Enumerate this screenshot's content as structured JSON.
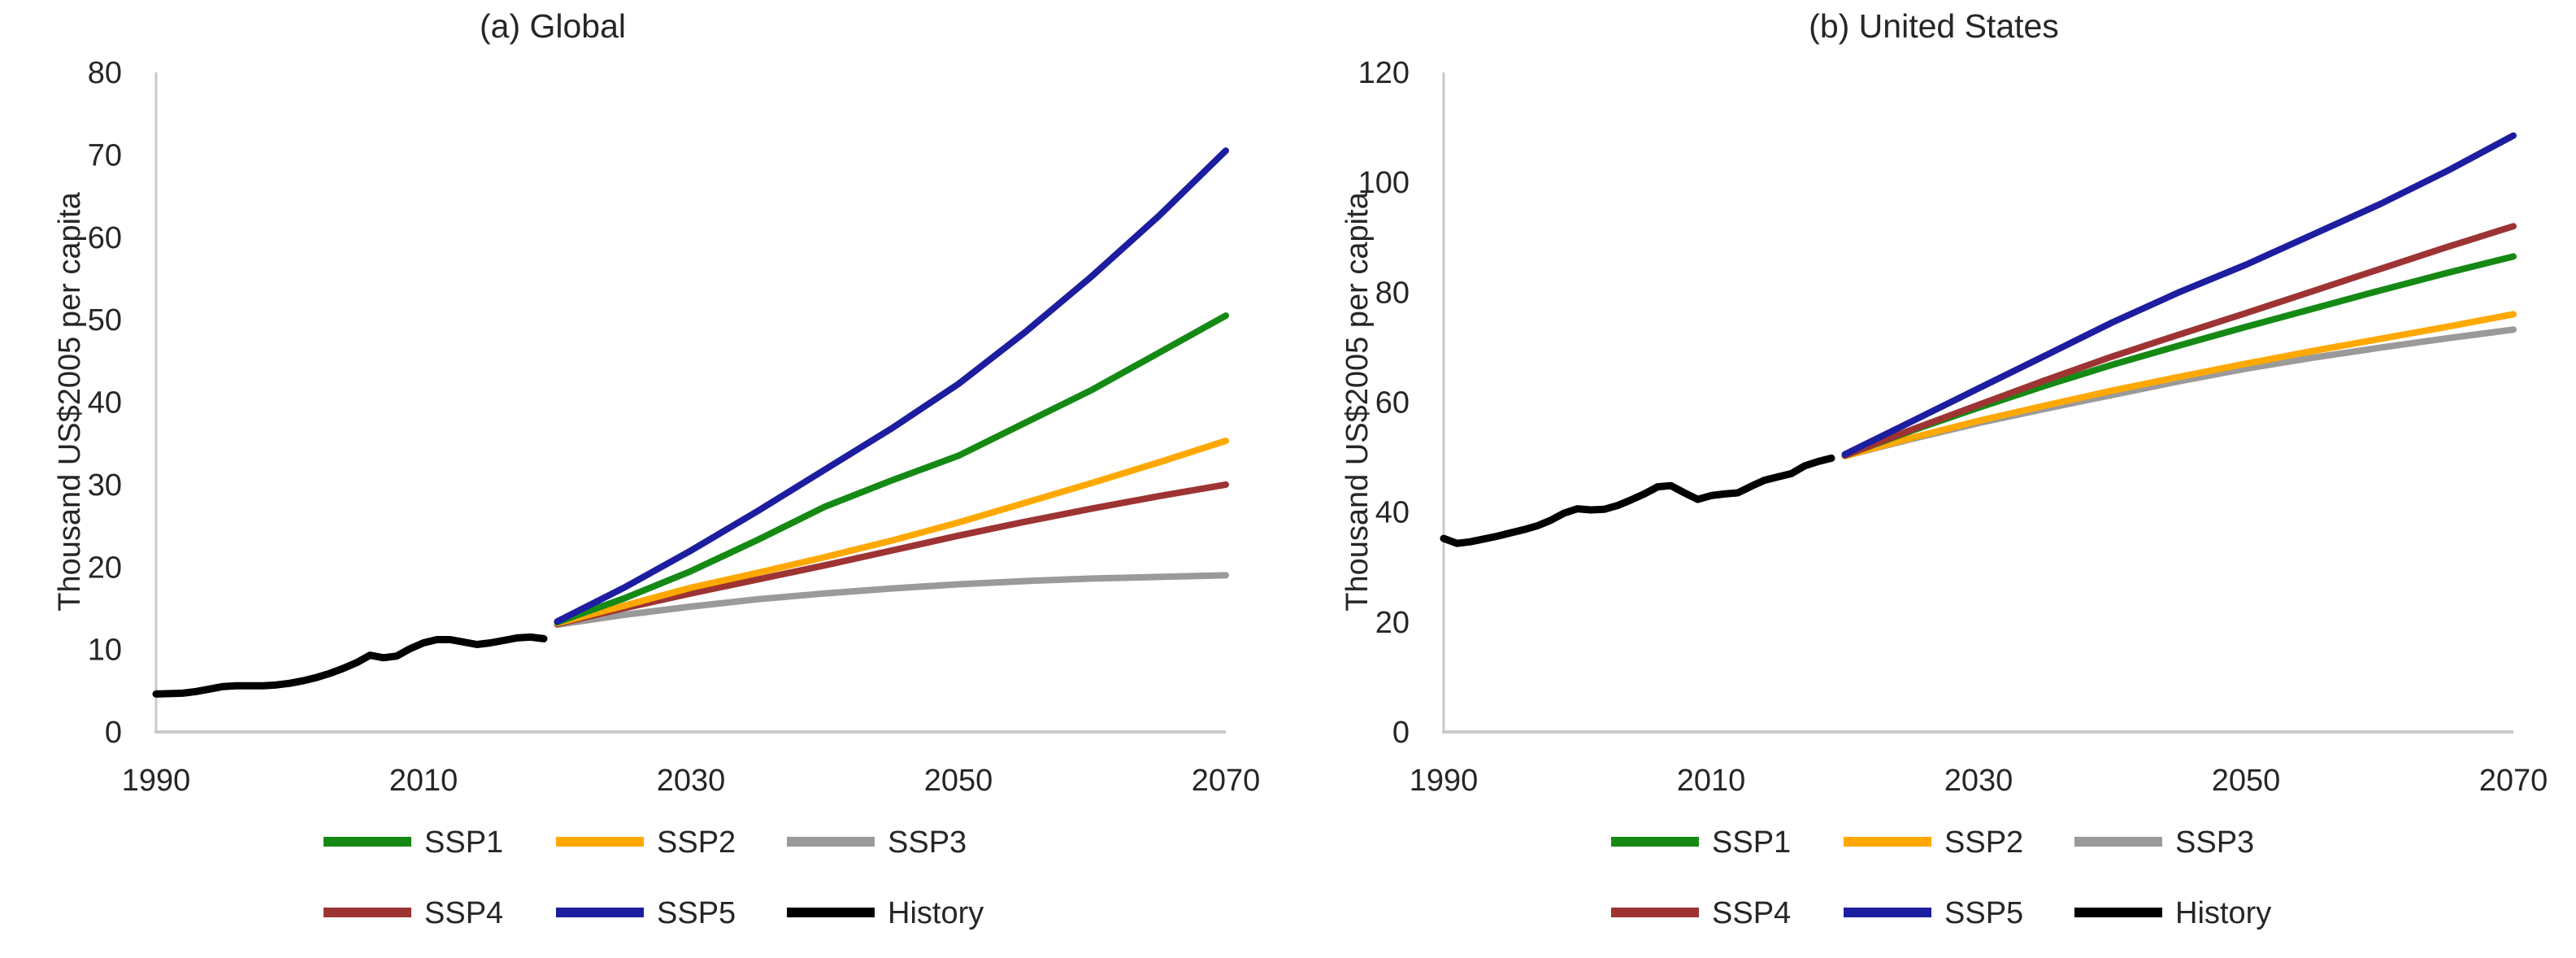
{
  "figure": {
    "background": "#ffffff",
    "text_color": "#262626",
    "axis_color": "#c9c9c9",
    "ylabel": "Thousand US$2005 per capita",
    "legend_rows": [
      [
        "SSP1",
        "SSP2",
        "SSP3"
      ],
      [
        "SSP4",
        "SSP5",
        "History"
      ]
    ],
    "colors": {
      "SSP1": "#148a14",
      "SSP2": "#ffa800",
      "SSP3": "#9a9a9a",
      "SSP4": "#9e3334",
      "SSP5": "#1d1da0",
      "History": "#000000"
    }
  },
  "chart_data": [
    {
      "type": "line",
      "title": "(a) Global",
      "xlabel": "",
      "ylabel": "Thousand US$2005 per capita",
      "xlim": [
        1990,
        2070
      ],
      "ylim": [
        0,
        80
      ],
      "xticks": [
        1990,
        2010,
        2030,
        2050,
        2070
      ],
      "yticks": [
        0,
        10,
        20,
        30,
        40,
        50,
        60,
        70,
        80
      ],
      "grid": false,
      "legend_position": "bottom",
      "draw_order": [
        "SSP3",
        "SSP4",
        "SSP2",
        "SSP1",
        "SSP5",
        "History"
      ],
      "series": [
        {
          "name": "History",
          "color": "#000000",
          "x": [
            1990,
            1991,
            1992,
            1993,
            1994,
            1995,
            1996,
            1997,
            1998,
            1999,
            2000,
            2001,
            2002,
            2003,
            2004,
            2005,
            2006,
            2007,
            2008,
            2009,
            2010,
            2011,
            2012,
            2013,
            2014,
            2015,
            2016,
            2017,
            2018,
            2019
          ],
          "y": [
            4.6,
            4.65,
            4.7,
            4.9,
            5.2,
            5.5,
            5.6,
            5.6,
            5.6,
            5.7,
            5.9,
            6.2,
            6.6,
            7.1,
            7.7,
            8.4,
            9.3,
            9.0,
            9.2,
            10.1,
            10.8,
            11.2,
            11.2,
            10.9,
            10.6,
            10.8,
            11.1,
            11.4,
            11.5,
            11.3
          ]
        },
        {
          "name": "SSP1",
          "color": "#148a14",
          "x": [
            2020,
            2025,
            2030,
            2035,
            2040,
            2045,
            2050,
            2055,
            2060,
            2065,
            2070
          ],
          "y": [
            13.3,
            16.2,
            19.5,
            23.3,
            27.3,
            30.5,
            33.5,
            37.5,
            41.5,
            46.0,
            50.5
          ]
        },
        {
          "name": "SSP2",
          "color": "#ffa800",
          "x": [
            2020,
            2025,
            2030,
            2035,
            2040,
            2045,
            2050,
            2055,
            2060,
            2065,
            2070
          ],
          "y": [
            13.2,
            15.3,
            17.5,
            19.3,
            21.2,
            23.2,
            25.4,
            27.8,
            30.2,
            32.7,
            35.3
          ]
        },
        {
          "name": "SSP3",
          "color": "#9a9a9a",
          "x": [
            2020,
            2025,
            2030,
            2035,
            2040,
            2045,
            2050,
            2055,
            2060,
            2065,
            2070
          ],
          "y": [
            13.0,
            14.2,
            15.2,
            16.1,
            16.8,
            17.4,
            17.9,
            18.3,
            18.6,
            18.8,
            19.0
          ]
        },
        {
          "name": "SSP4",
          "color": "#9e3334",
          "x": [
            2020,
            2025,
            2030,
            2035,
            2040,
            2045,
            2050,
            2055,
            2060,
            2065,
            2070
          ],
          "y": [
            13.1,
            15.0,
            16.8,
            18.5,
            20.2,
            22.0,
            23.8,
            25.5,
            27.1,
            28.6,
            30.0
          ]
        },
        {
          "name": "SSP5",
          "color": "#1d1da0",
          "x": [
            2020,
            2025,
            2030,
            2035,
            2040,
            2045,
            2050,
            2055,
            2060,
            2065,
            2070
          ],
          "y": [
            13.4,
            17.5,
            22.0,
            26.8,
            31.8,
            36.8,
            42.2,
            48.5,
            55.3,
            62.6,
            70.5
          ]
        }
      ]
    },
    {
      "type": "line",
      "title": "(b) United States",
      "xlabel": "",
      "ylabel": "Thousand US$2005 per capita",
      "xlim": [
        1990,
        2070
      ],
      "ylim": [
        0,
        120
      ],
      "xticks": [
        1990,
        2010,
        2030,
        2050,
        2070
      ],
      "yticks": [
        0,
        20,
        40,
        60,
        80,
        100,
        120
      ],
      "grid": false,
      "legend_position": "bottom",
      "draw_order": [
        "SSP3",
        "SSP2",
        "SSP1",
        "SSP4",
        "SSP5",
        "History"
      ],
      "series": [
        {
          "name": "History",
          "color": "#000000",
          "x": [
            1990,
            1991,
            1992,
            1993,
            1994,
            1995,
            1996,
            1997,
            1998,
            1999,
            2000,
            2001,
            2002,
            2003,
            2004,
            2005,
            2006,
            2007,
            2008,
            2009,
            2010,
            2011,
            2012,
            2013,
            2014,
            2015,
            2016,
            2017,
            2018,
            2019
          ],
          "y": [
            35.2,
            34.3,
            34.6,
            35.1,
            35.6,
            36.2,
            36.8,
            37.5,
            38.5,
            39.8,
            40.6,
            40.4,
            40.5,
            41.2,
            42.2,
            43.3,
            44.6,
            44.8,
            43.5,
            42.3,
            43.0,
            43.3,
            43.5,
            44.7,
            45.8,
            46.4,
            47.0,
            48.4,
            49.2,
            49.8
          ]
        },
        {
          "name": "SSP1",
          "color": "#148a14",
          "x": [
            2020,
            2025,
            2030,
            2035,
            2040,
            2045,
            2050,
            2055,
            2060,
            2065,
            2070
          ],
          "y": [
            50.3,
            54.8,
            59.0,
            63.0,
            66.8,
            70.3,
            73.7,
            77.0,
            80.3,
            83.5,
            86.5
          ]
        },
        {
          "name": "SSP2",
          "color": "#ffa800",
          "x": [
            2020,
            2025,
            2030,
            2035,
            2040,
            2045,
            2050,
            2055,
            2060,
            2065,
            2070
          ],
          "y": [
            50.2,
            53.5,
            56.6,
            59.4,
            62.1,
            64.6,
            67.0,
            69.3,
            71.5,
            73.7,
            76.0
          ]
        },
        {
          "name": "SSP3",
          "color": "#9a9a9a",
          "x": [
            2020,
            2025,
            2030,
            2035,
            2040,
            2045,
            2050,
            2055,
            2060,
            2065,
            2070
          ],
          "y": [
            50.2,
            53.3,
            56.2,
            58.8,
            61.3,
            63.8,
            66.1,
            68.1,
            69.9,
            71.6,
            73.2
          ]
        },
        {
          "name": "SSP4",
          "color": "#9e3334",
          "x": [
            2020,
            2025,
            2030,
            2035,
            2040,
            2045,
            2050,
            2055,
            2060,
            2065,
            2070
          ],
          "y": [
            50.3,
            55.0,
            59.5,
            64.0,
            68.3,
            72.3,
            76.2,
            80.2,
            84.2,
            88.2,
            92.0
          ]
        },
        {
          "name": "SSP5",
          "color": "#1d1da0",
          "x": [
            2020,
            2025,
            2030,
            2035,
            2040,
            2045,
            2050,
            2055,
            2060,
            2065,
            2070
          ],
          "y": [
            50.5,
            56.5,
            62.5,
            68.5,
            74.5,
            80.0,
            85.0,
            90.5,
            96.0,
            102.0,
            108.5
          ]
        }
      ]
    }
  ]
}
